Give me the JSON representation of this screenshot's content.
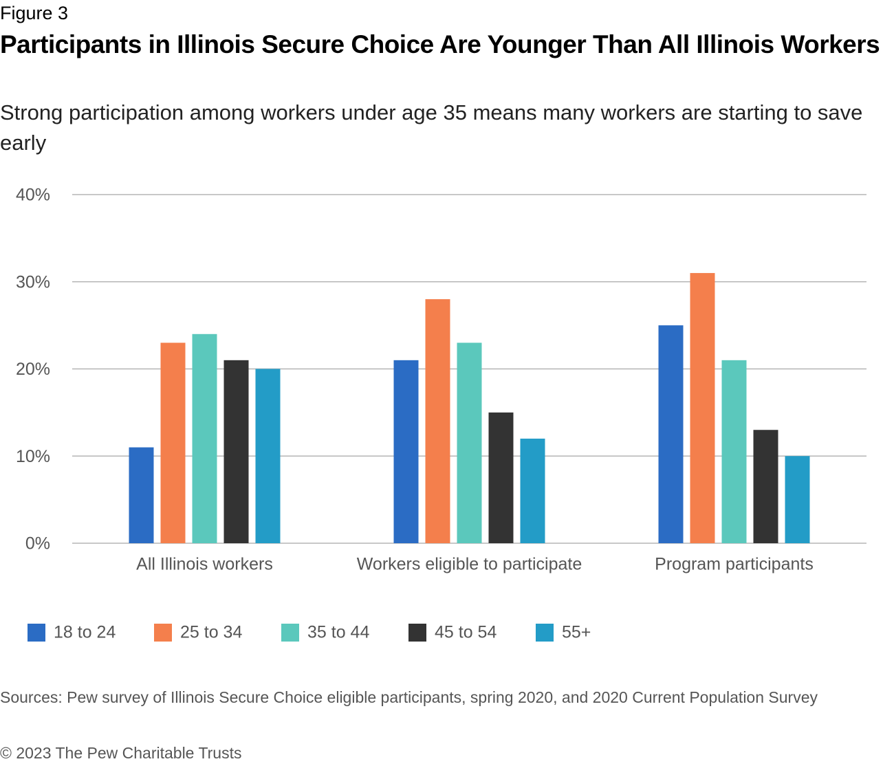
{
  "chart_data": {
    "type": "bar",
    "figure_label": "Figure 3",
    "title": "Participants in Illinois Secure Choice Are Younger Than All Illinois Workers",
    "subtitle": "Strong participation among workers under age 35 means many workers are starting to save early",
    "categories": [
      "All Illinois workers",
      "Workers eligible to participate",
      "Program participants"
    ],
    "series": [
      {
        "name": "18 to 24",
        "color": "#2b6cc4",
        "values": [
          11,
          21,
          25
        ]
      },
      {
        "name": "25 to 34",
        "color": "#f47f4c",
        "values": [
          23,
          28,
          31
        ]
      },
      {
        "name": "35 to 44",
        "color": "#5bc8bc",
        "values": [
          24,
          23,
          21
        ]
      },
      {
        "name": "45 to 54",
        "color": "#333333",
        "values": [
          21,
          15,
          13
        ]
      },
      {
        "name": "55+",
        "color": "#239cc7",
        "values": [
          20,
          12,
          10
        ]
      }
    ],
    "ylim": [
      0,
      40
    ],
    "yticks": [
      {
        "value": 0,
        "label": "0%"
      },
      {
        "value": 10,
        "label": "10%"
      },
      {
        "value": 20,
        "label": "20%"
      },
      {
        "value": 30,
        "label": "30%"
      },
      {
        "value": 40,
        "label": "40%"
      }
    ],
    "grid": true,
    "legend": "bottom",
    "source": "Sources: Pew survey of Illinois Secure Choice eligible participants, spring 2020, and 2020 Current Population Survey",
    "copyright": "© 2023 The Pew Charitable Trusts"
  }
}
